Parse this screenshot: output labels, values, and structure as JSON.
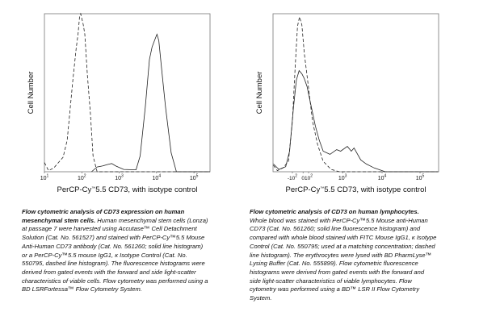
{
  "chart_data": [
    {
      "type": "line",
      "title": "",
      "xlabel": "PerCP-Cy™ 5.5 CD73, with isotype control",
      "xlabel_parts": {
        "pre": "PerCP-Cy",
        "tm": "™",
        "post": "5.5 CD73, with isotype control"
      },
      "ylabel": "Cell Number",
      "x_scale": "log10",
      "xlim": [
        1.0,
        5.43
      ],
      "ylim": [
        0,
        1
      ],
      "ticks": [
        {
          "pos": 1,
          "base": "10",
          "exp": "1"
        },
        {
          "pos": 2,
          "base": "10",
          "exp": "2"
        },
        {
          "pos": 3,
          "base": "10",
          "exp": "3"
        },
        {
          "pos": 4,
          "base": "10",
          "exp": "4"
        },
        {
          "pos": 5,
          "base": "10",
          "exp": "5"
        }
      ],
      "series": [
        {
          "name": "Isotype Control",
          "style": "dashed",
          "x": [
            1.0,
            1.11,
            1.25,
            1.5,
            1.61,
            1.76,
            1.85,
            1.9,
            1.94,
            1.97,
            2.04,
            2.08,
            2.15,
            2.23,
            2.3,
            2.41,
            5.43
          ],
          "y": [
            0.058,
            0.007,
            0.024,
            0.092,
            0.2,
            0.58,
            0.78,
            0.87,
            0.98,
            1.0,
            0.93,
            0.87,
            0.61,
            0.37,
            0.1,
            0,
            0
          ]
        },
        {
          "name": "CD73",
          "style": "solid",
          "x": [
            2.26,
            2.41,
            2.55,
            2.69,
            2.8,
            2.91,
            3.12,
            3.45,
            3.56,
            3.7,
            3.81,
            3.88,
            3.96,
            4.01,
            4.06,
            4.14,
            4.24,
            4.39,
            4.53,
            5.43
          ],
          "y": [
            0,
            0.03,
            0.036,
            0.046,
            0.052,
            0.036,
            0.015,
            0.012,
            0.1,
            0.41,
            0.71,
            0.79,
            0.84,
            0.87,
            0.83,
            0.64,
            0.41,
            0.12,
            0,
            0
          ]
        }
      ]
    },
    {
      "type": "line",
      "title": "",
      "xlabel": "PerCP-Cy™ 5.5 CD73, with isotype control",
      "xlabel_parts": {
        "pre": "PerCP-Cy",
        "tm": "™",
        "post": "5.5 CD73, with isotype control"
      },
      "ylabel": "Cell Number",
      "x_scale": "biexponential (display units)",
      "xlim": [
        1.24,
        5.43
      ],
      "ylim": [
        0,
        1
      ],
      "ticks": [
        {
          "pos": 1.73,
          "base": "-10",
          "exp": "2"
        },
        {
          "pos": 2.0,
          "base": "0",
          "exp": ""
        },
        {
          "pos": 2.14,
          "base": "10",
          "exp": "2"
        },
        {
          "pos": 3,
          "base": "10",
          "exp": "3"
        },
        {
          "pos": 4,
          "base": "10",
          "exp": "4"
        },
        {
          "pos": 4.96,
          "base": "10",
          "exp": "5"
        }
      ],
      "series": [
        {
          "name": "Isotype Control",
          "style": "dashed",
          "x": [
            1.25,
            1.35,
            1.49,
            1.63,
            1.73,
            1.8,
            1.86,
            1.91,
            1.97,
            2.03,
            2.14,
            2.24,
            2.37,
            2.51,
            2.71,
            2.92,
            5.42
          ],
          "y": [
            0.041,
            0.007,
            0.024,
            0.066,
            0.32,
            0.66,
            0.92,
            0.98,
            0.93,
            0.75,
            0.53,
            0.32,
            0.17,
            0.066,
            0.015,
            0,
            0
          ]
        },
        {
          "name": "CD73",
          "style": "solid",
          "x": [
            1.25,
            1.39,
            1.56,
            1.66,
            1.76,
            1.83,
            1.9,
            1.97,
            2.03,
            2.1,
            2.2,
            2.31,
            2.41,
            2.51,
            2.68,
            2.85,
            2.95,
            3.12,
            3.22,
            3.29,
            3.46,
            3.6,
            3.8,
            4.08,
            5.42
          ],
          "y": [
            0.049,
            0.015,
            0.032,
            0.13,
            0.41,
            0.58,
            0.64,
            0.62,
            0.59,
            0.54,
            0.42,
            0.29,
            0.2,
            0.13,
            0.11,
            0.14,
            0.13,
            0.16,
            0.13,
            0.15,
            0.075,
            0.049,
            0.024,
            0,
            0
          ]
        }
      ]
    }
  ],
  "captions": [
    {
      "bold": "Flow cytometric analysis of CD73 expression on human mesenchymal stem cells.",
      "text": " Human mesenchymal stem cells (Lonza) at passage 7 were harvested using Accutase™ Cell Detachment Solution (Cat. No. 561527) and stained with PerCP-Cy™5.5 Mouse Anti-Human CD73 antibody (Cat. No. 561260; solid line histogram) or a PerCP-Cy™5.5 mouse IgG1, κ Isotype Control (Cat. No. 550795, dashed line histogram). The fluorescence histograms were derived from gated events with the forward and side light-scatter characteristics of viable cells. Flow cytometry was performed using a BD LSRFortessa™ Flow Cytometry System."
    },
    {
      "bold": "Flow cytometric analysis of CD73 on human lymphocytes.",
      "text": " Whole blood was stained with PerCP-Cy™5.5 Mouse anti-Human CD73 (Cat. No. 561260; solid line fluorescence histogram) and compared with whole blood stained with FITC Mouse IgG1, κ Isotype Control (Cat. No. 550795; used at a matching concentration; dashed line histogram). The erythrocytes were lysed with BD PharmLyse™ Lysing Buffer (Cat. No. 555899). Flow cytometric fluorescence histograms were derived from gated events with the forward and side light-scatter characteristics of viable lymphocytes. Flow cytometry was performed using a BD™ LSR II Flow Cytometry System."
    }
  ]
}
